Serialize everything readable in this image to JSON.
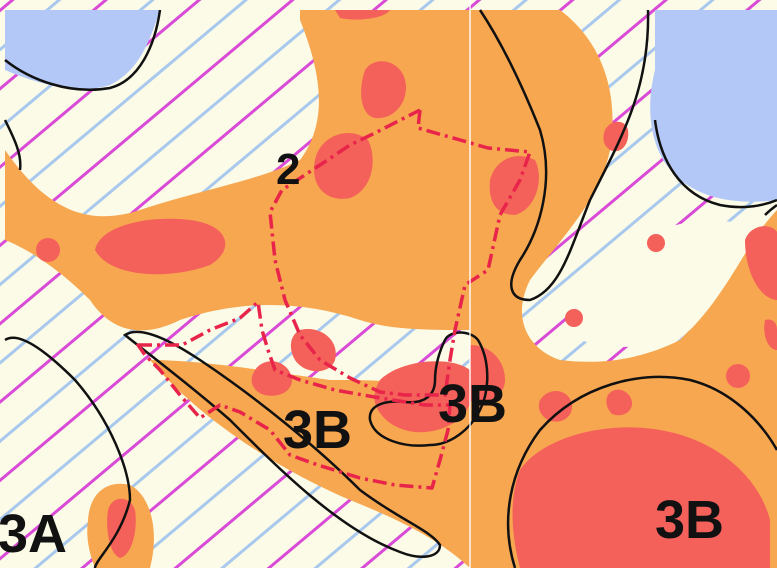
{
  "map": {
    "labels": {
      "zone_2": "2",
      "zone_3b_center": "3B",
      "zone_3b_right": "3B",
      "zone_3b_bottom_right": "3B",
      "zone_3a": "3A"
    },
    "colors": {
      "background": "#fbfbe8",
      "water": "#b3c8f7",
      "orange_zone": "#f7a750",
      "red_zone": "#f4605a",
      "hatch_magenta": "#d94ad6",
      "hatch_blue": "#a8c8ee",
      "boundary_black": "#111111",
      "dashdot_red": "#e8244a"
    }
  }
}
